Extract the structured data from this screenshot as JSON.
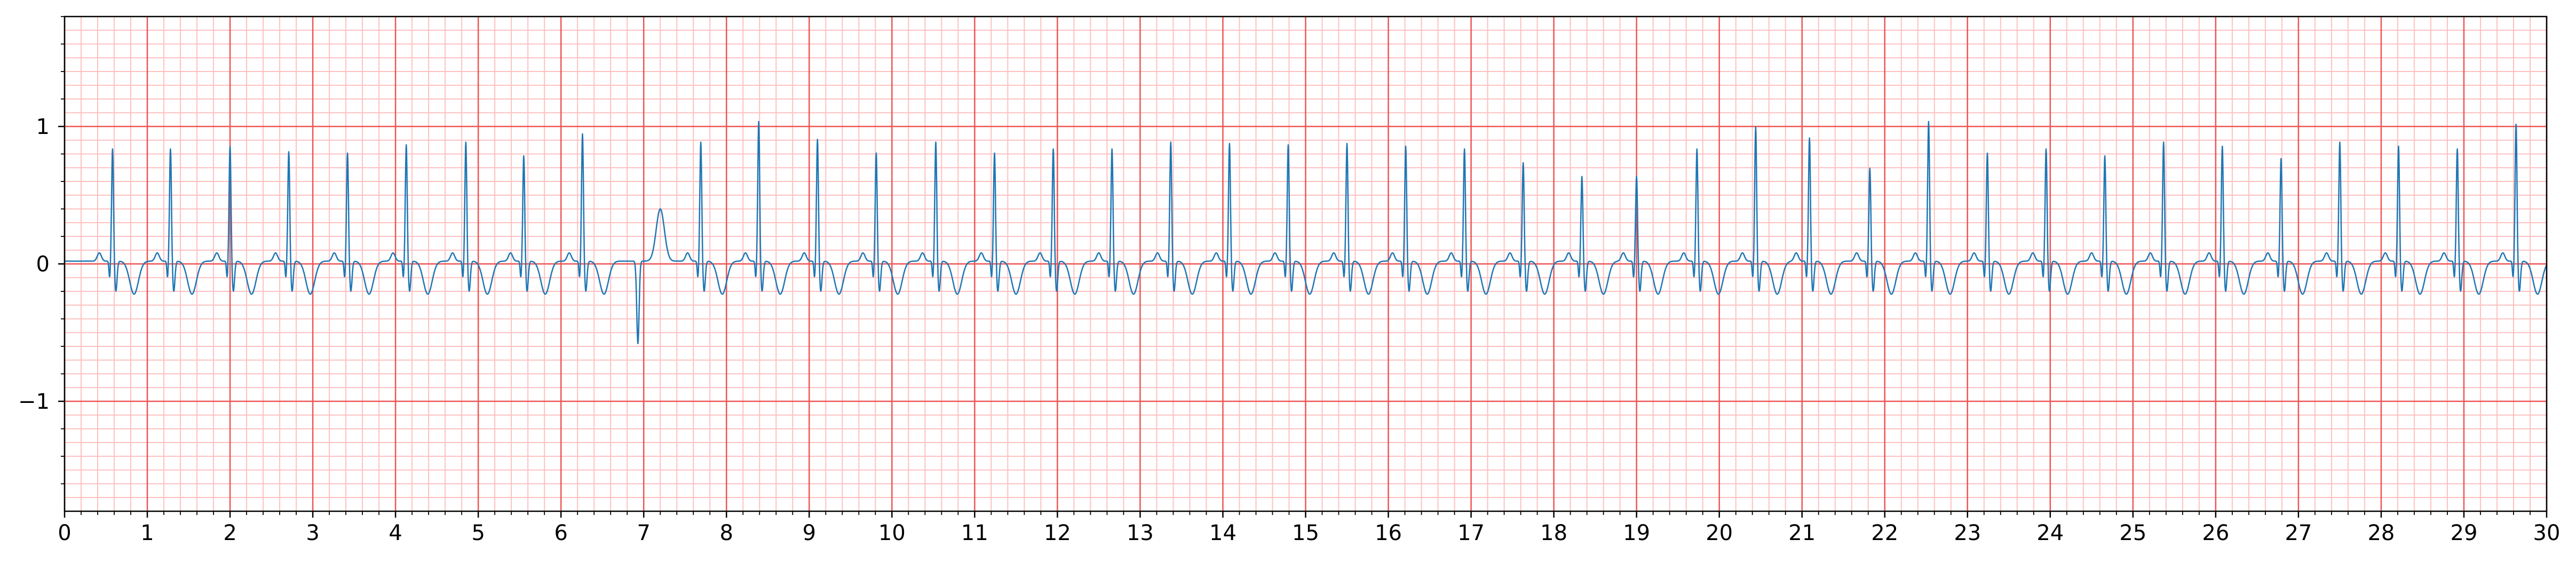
{
  "chart_data": {
    "type": "line",
    "title": "",
    "xlabel": "",
    "ylabel": "",
    "xlim": [
      0,
      30
    ],
    "ylim": [
      -1.8,
      1.8
    ],
    "grid": "ecg-paper",
    "x_major_ticks": [
      0,
      1,
      2,
      3,
      4,
      5,
      6,
      7,
      8,
      9,
      10,
      11,
      12,
      13,
      14,
      15,
      16,
      17,
      18,
      19,
      20,
      21,
      22,
      23,
      24,
      25,
      26,
      27,
      28,
      29,
      30
    ],
    "x_tick_labels": [
      "0",
      "1",
      "2",
      "3",
      "4",
      "5",
      "6",
      "7",
      "8",
      "9",
      "10",
      "11",
      "12",
      "13",
      "14",
      "15",
      "16",
      "17",
      "18",
      "19",
      "20",
      "21",
      "22",
      "23",
      "24",
      "25",
      "26",
      "27",
      "28",
      "29",
      "30"
    ],
    "y_major_ticks": [
      -1,
      0,
      1
    ],
    "y_tick_labels": [
      "−1",
      "0",
      "1"
    ],
    "grid_major_step_x": 1,
    "grid_minor_step_x": 0.2,
    "grid_major_step_y": 1,
    "grid_minor_step_y": 0.1,
    "series": [
      {
        "name": "ECG",
        "color": "#1f77b4",
        "baseline": 0.02,
        "beats": [
          {
            "t": 0.58,
            "r": 0.84
          },
          {
            "t": 1.28,
            "r": 0.84
          },
          {
            "t": 2.0,
            "r": 0.86
          },
          {
            "t": 2.71,
            "r": 0.82
          },
          {
            "t": 3.42,
            "r": 0.81
          },
          {
            "t": 4.13,
            "r": 0.87
          },
          {
            "t": 4.85,
            "r": 0.89
          },
          {
            "t": 5.55,
            "r": 0.79
          },
          {
            "t": 6.26,
            "r": 0.95
          },
          {
            "t": 6.93,
            "r": 0.0,
            "s": -0.6
          },
          {
            "t": 7.69,
            "r": 0.89
          },
          {
            "t": 8.39,
            "r": 1.04
          },
          {
            "t": 9.1,
            "r": 0.91
          },
          {
            "t": 9.81,
            "r": 0.81
          },
          {
            "t": 10.53,
            "r": 0.89
          },
          {
            "t": 11.24,
            "r": 0.81
          },
          {
            "t": 11.95,
            "r": 0.84
          },
          {
            "t": 12.66,
            "r": 0.84
          },
          {
            "t": 13.37,
            "r": 0.89
          },
          {
            "t": 14.08,
            "r": 0.88
          },
          {
            "t": 14.79,
            "r": 0.87
          },
          {
            "t": 15.5,
            "r": 0.88
          },
          {
            "t": 16.21,
            "r": 0.86
          },
          {
            "t": 16.92,
            "r": 0.84
          },
          {
            "t": 17.63,
            "r": 0.74
          },
          {
            "t": 18.34,
            "r": 0.64
          },
          {
            "t": 19.0,
            "r": 0.64
          },
          {
            "t": 19.73,
            "r": 0.84
          },
          {
            "t": 20.44,
            "r": 1.0
          },
          {
            "t": 21.09,
            "r": 0.92
          },
          {
            "t": 21.82,
            "r": 0.7
          },
          {
            "t": 22.53,
            "r": 1.04
          },
          {
            "t": 23.24,
            "r": 0.81
          },
          {
            "t": 23.95,
            "r": 0.84
          },
          {
            "t": 24.66,
            "r": 0.79
          },
          {
            "t": 25.37,
            "r": 0.89
          },
          {
            "t": 26.08,
            "r": 0.86
          },
          {
            "t": 26.79,
            "r": 0.77
          },
          {
            "t": 27.5,
            "r": 0.89
          },
          {
            "t": 28.21,
            "r": 0.86
          },
          {
            "t": 28.92,
            "r": 0.84
          },
          {
            "t": 29.63,
            "r": 1.02
          }
        ]
      }
    ]
  }
}
